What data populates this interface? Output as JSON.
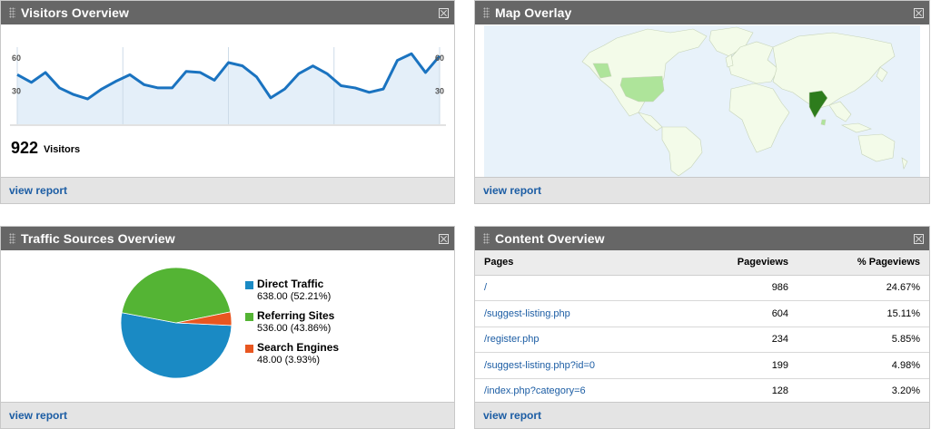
{
  "visitors_overview": {
    "title": "Visitors Overview",
    "count": "922",
    "count_label": "Visitors",
    "view_report": "view report",
    "chart_data": {
      "type": "area",
      "y_tick_labels": [
        "60",
        "30"
      ],
      "ylim": [
        0,
        70
      ],
      "values": [
        45,
        38,
        47,
        33,
        27,
        23,
        32,
        39,
        45,
        36,
        33,
        33,
        48,
        47,
        40,
        56,
        53,
        43,
        24,
        32,
        46,
        53,
        46,
        35,
        33,
        29,
        32,
        58,
        64,
        47,
        62
      ],
      "colors": {
        "line": "#1a73c0",
        "fill": "#e4eff9"
      }
    }
  },
  "map_overlay": {
    "title": "Map Overlay",
    "view_report": "view report",
    "colors": {
      "ocean": "#e8f2fa",
      "land": "#f3fbe9",
      "low": "#aee49a",
      "high": "#2d7c1c"
    }
  },
  "traffic_sources": {
    "title": "Traffic Sources Overview",
    "view_report": "view report",
    "chart_data": {
      "type": "pie",
      "slices": [
        {
          "name": "Direct Traffic",
          "value": 638.0,
          "label": "638.00 (52.21%)",
          "color": "#1a8ac4"
        },
        {
          "name": "Referring Sites",
          "value": 536.0,
          "label": "536.00 (43.86%)",
          "color": "#54b434"
        },
        {
          "name": "Search Engines",
          "value": 48.0,
          "label": "48.00 (3.93%)",
          "color": "#e85620"
        }
      ]
    }
  },
  "content_overview": {
    "title": "Content Overview",
    "view_report": "view report",
    "columns": [
      "Pages",
      "Pageviews",
      "% Pageviews"
    ],
    "rows": [
      {
        "page": "/",
        "views": "986",
        "pct": "24.67%"
      },
      {
        "page": "/suggest-listing.php",
        "views": "604",
        "pct": "15.11%"
      },
      {
        "page": "/register.php",
        "views": "234",
        "pct": "5.85%"
      },
      {
        "page": "/suggest-listing.php?id=0",
        "views": "199",
        "pct": "4.98%"
      },
      {
        "page": "/index.php?category=6",
        "views": "128",
        "pct": "3.20%"
      }
    ]
  }
}
